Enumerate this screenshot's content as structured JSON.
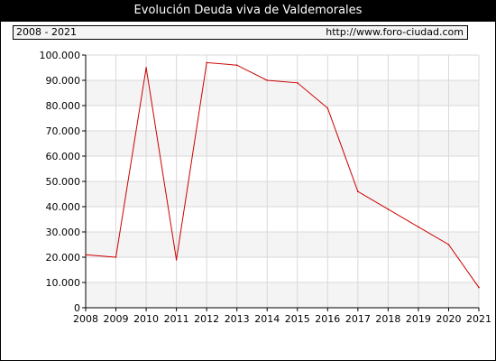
{
  "title": "Evolución Deuda viva de Valdemorales",
  "info": {
    "range_label": "2008 - 2021",
    "source_url": "http://www.foro-ciudad.com"
  },
  "colors": {
    "line": "#cc0000",
    "band": "#f4f4f4",
    "grid": "#d9d9d9"
  },
  "chart_data": {
    "type": "line",
    "title": "Evolución Deuda viva de Valdemorales",
    "xlabel": "",
    "ylabel": "",
    "x": [
      2008,
      2009,
      2010,
      2011,
      2012,
      2013,
      2014,
      2015,
      2016,
      2017,
      2018,
      2019,
      2020,
      2021
    ],
    "xticks": [
      "2008",
      "2009",
      "2010",
      "2011",
      "2012",
      "2013",
      "2014",
      "2015",
      "2016",
      "2017",
      "2018",
      "2019",
      "2020",
      "2021"
    ],
    "series": [
      {
        "values": [
          21000,
          20000,
          95000,
          19000,
          97000,
          96000,
          90000,
          89000,
          79000,
          46000,
          39000,
          32000,
          25000,
          8000
        ]
      }
    ],
    "ylim": [
      0,
      100000
    ],
    "yticks": [
      0,
      10000,
      20000,
      30000,
      40000,
      50000,
      60000,
      70000,
      80000,
      90000,
      100000
    ],
    "ytick_labels": [
      "0",
      "10.000",
      "20.000",
      "30.000",
      "40.000",
      "50.000",
      "60.000",
      "70.000",
      "80.000",
      "90.000",
      "100.000"
    ],
    "grid": true,
    "legend": "none"
  }
}
